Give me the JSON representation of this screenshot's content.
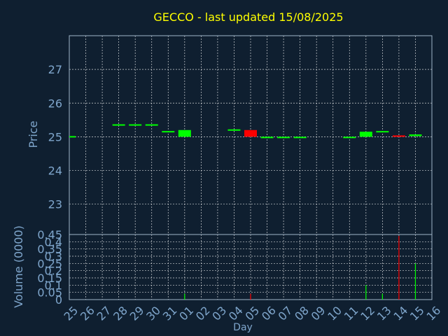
{
  "colors": {
    "background": "#0f1f30",
    "title": "#ffff00",
    "axis_text": "#7fa6cc",
    "up": "#00ff00",
    "down": "#ff0000",
    "grid": "#ffffff",
    "frame": "#9fb4c8"
  },
  "chart_data": {
    "type": "candlestick",
    "title": "GECCO - last updated 15/08/2025",
    "xlabel": "Day",
    "x_ticks": [
      "25",
      "26",
      "27",
      "28",
      "29",
      "30",
      "31",
      "01",
      "02",
      "03",
      "04",
      "05",
      "06",
      "07",
      "08",
      "09",
      "10",
      "11",
      "12",
      "13",
      "14",
      "15",
      "16"
    ],
    "price_panel": {
      "ylabel": "Price",
      "ylim": [
        22.1,
        28.0
      ],
      "yticks": [
        23,
        24,
        25,
        26,
        27
      ],
      "candles": [
        {
          "day_index": 0,
          "open": 25.0,
          "close": 25.0,
          "color": "up"
        },
        {
          "day_index": 3,
          "open": 25.35,
          "close": 25.35,
          "color": "up"
        },
        {
          "day_index": 4,
          "open": 25.35,
          "close": 25.35,
          "color": "up"
        },
        {
          "day_index": 5,
          "open": 25.35,
          "close": 25.35,
          "color": "up"
        },
        {
          "day_index": 6,
          "open": 25.15,
          "close": 25.15,
          "color": "up"
        },
        {
          "day_index": 7,
          "open": 25.0,
          "close": 25.2,
          "color": "up"
        },
        {
          "day_index": 10,
          "open": 25.2,
          "close": 25.2,
          "color": "up"
        },
        {
          "day_index": 11,
          "open": 25.2,
          "close": 25.0,
          "color": "down"
        },
        {
          "day_index": 12,
          "open": 24.98,
          "close": 24.98,
          "color": "up"
        },
        {
          "day_index": 13,
          "open": 24.98,
          "close": 24.98,
          "color": "up"
        },
        {
          "day_index": 14,
          "open": 24.98,
          "close": 24.98,
          "color": "up"
        },
        {
          "day_index": 17,
          "open": 24.98,
          "close": 24.98,
          "color": "up"
        },
        {
          "day_index": 18,
          "open": 25.0,
          "close": 25.15,
          "color": "up"
        },
        {
          "day_index": 19,
          "open": 25.15,
          "close": 25.15,
          "color": "up"
        },
        {
          "day_index": 20,
          "open": 25.02,
          "close": 25.0,
          "color": "down"
        },
        {
          "day_index": 21,
          "open": 25.02,
          "close": 25.07,
          "color": "up"
        }
      ]
    },
    "volume_panel": {
      "ylabel": "Volume (0000)",
      "ylim": [
        0,
        0.45
      ],
      "yticks": [
        "0",
        "0.05",
        "0.1",
        "0.15",
        "0.2",
        "0.25",
        "0.3",
        "0.35",
        "0.4",
        "0.45"
      ],
      "bars": [
        {
          "day_index": 7,
          "value": 0.04,
          "color": "up"
        },
        {
          "day_index": 11,
          "value": 0.04,
          "color": "down"
        },
        {
          "day_index": 18,
          "value": 0.1,
          "color": "up"
        },
        {
          "day_index": 19,
          "value": 0.04,
          "color": "up"
        },
        {
          "day_index": 20,
          "value": 0.44,
          "color": "down"
        },
        {
          "day_index": 21,
          "value": 0.25,
          "color": "up"
        }
      ]
    }
  }
}
